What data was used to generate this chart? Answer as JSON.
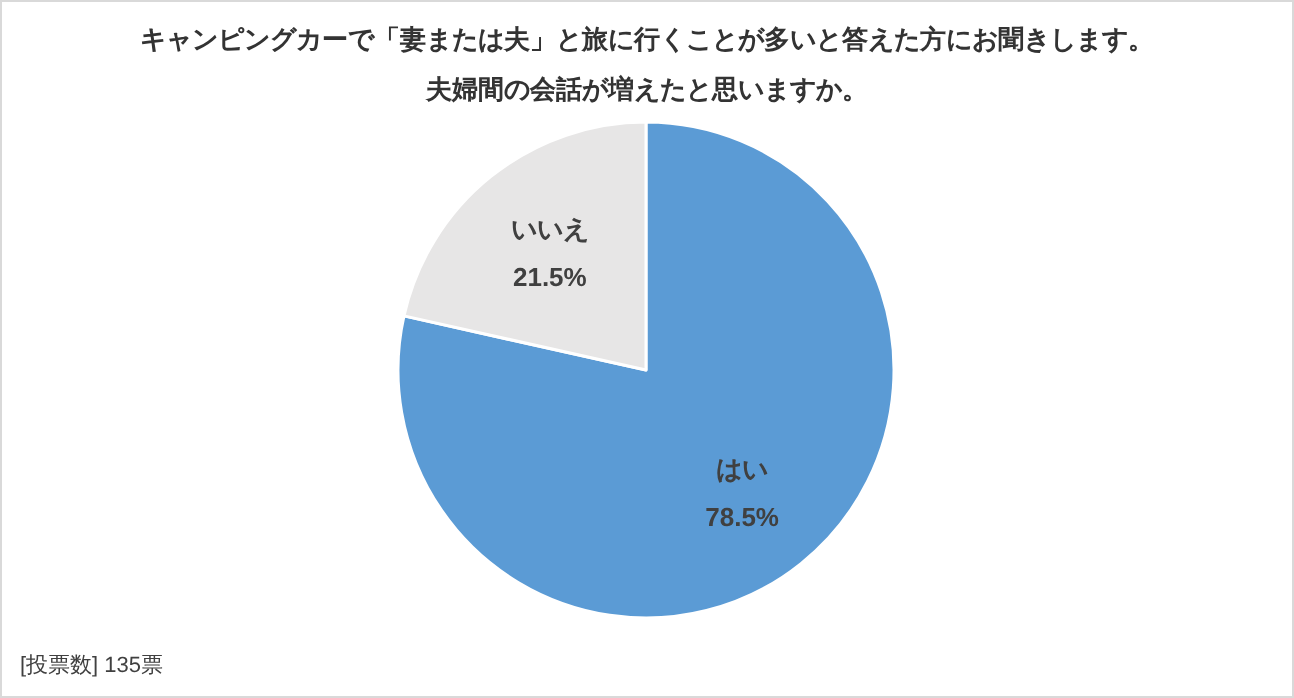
{
  "chart_data": {
    "type": "pie",
    "title": "キャンピングカーで「妻または夫」と旅に行くことが多いと答えた方にお聞きします。",
    "subtitle": "夫婦間の会話が増えたと思いますか。",
    "categories": [
      "はい",
      "いいえ"
    ],
    "values": [
      78.5,
      21.5
    ],
    "value_labels": [
      "78.5%",
      "21.5%"
    ],
    "colors": [
      "#5b9bd5",
      "#e7e6e6"
    ],
    "annotations": [
      "[投票数] 135票"
    ]
  }
}
